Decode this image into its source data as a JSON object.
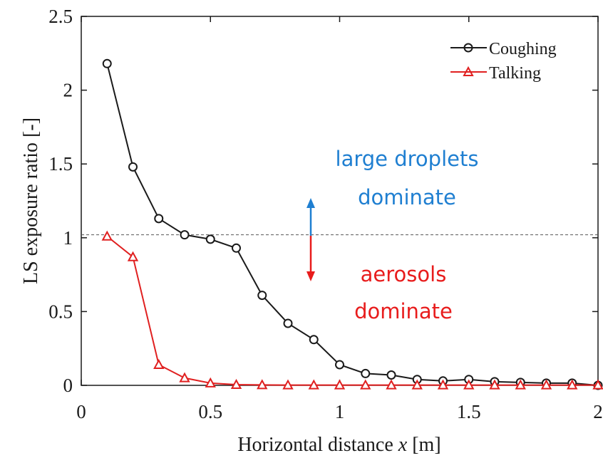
{
  "chart_data": {
    "type": "line",
    "xlabel_prefix": "Horizontal distance ",
    "xlabel_var": "x",
    "xlabel_suffix": " [m]",
    "ylabel": "LS exposure ratio [-]",
    "xlim": [
      0,
      2
    ],
    "ylim": [
      0,
      2.5
    ],
    "x_ticks": [
      0,
      0.5,
      1,
      1.5,
      2
    ],
    "y_ticks": [
      0,
      0.5,
      1,
      1.5,
      2,
      2.5
    ],
    "x_tick_labels": [
      "0",
      "0.5",
      "1",
      "1.5",
      "2"
    ],
    "y_tick_labels": [
      "0",
      "0.5",
      "1",
      "1.5",
      "2",
      "2.5"
    ],
    "legend_position": "top-right",
    "grid": false,
    "series": [
      {
        "name": "Coughing",
        "color": "#1a1a1a",
        "marker": "circle",
        "x": [
          0.1,
          0.2,
          0.3,
          0.4,
          0.5,
          0.6,
          0.7,
          0.8,
          0.9,
          1.0,
          1.1,
          1.2,
          1.3,
          1.4,
          1.5,
          1.6,
          1.7,
          1.8,
          1.9,
          2.0
        ],
        "y": [
          2.18,
          1.48,
          1.13,
          1.02,
          0.99,
          0.93,
          0.61,
          0.42,
          0.31,
          0.14,
          0.08,
          0.07,
          0.04,
          0.03,
          0.04,
          0.025,
          0.02,
          0.015,
          0.015,
          0.0
        ]
      },
      {
        "name": "Talking",
        "color": "#e02020",
        "marker": "triangle",
        "x": [
          0.1,
          0.2,
          0.3,
          0.4,
          0.5,
          0.6,
          0.7,
          0.8,
          0.9,
          1.0,
          1.1,
          1.2,
          1.3,
          1.4,
          1.5,
          1.6,
          1.7,
          1.8,
          1.9,
          2.0
        ],
        "y": [
          1.01,
          0.87,
          0.14,
          0.05,
          0.015,
          0.005,
          0.003,
          0.002,
          0.002,
          0.002,
          0.002,
          0.002,
          0.002,
          0.002,
          0.002,
          0.002,
          0.002,
          0.002,
          0.002,
          0.002
        ]
      }
    ],
    "reference_line": {
      "y": 1.02,
      "style": "dashed",
      "color": "#555555"
    },
    "annotations": [
      {
        "lines": [
          "large droplets",
          "dominate"
        ],
        "color": "#1f7fd1"
      },
      {
        "lines": [
          "aerosols",
          "dominate"
        ],
        "color": "#e81c1c"
      }
    ],
    "arrow_colors": {
      "up": "#1f7fd1",
      "down": "#e81c1c"
    }
  }
}
